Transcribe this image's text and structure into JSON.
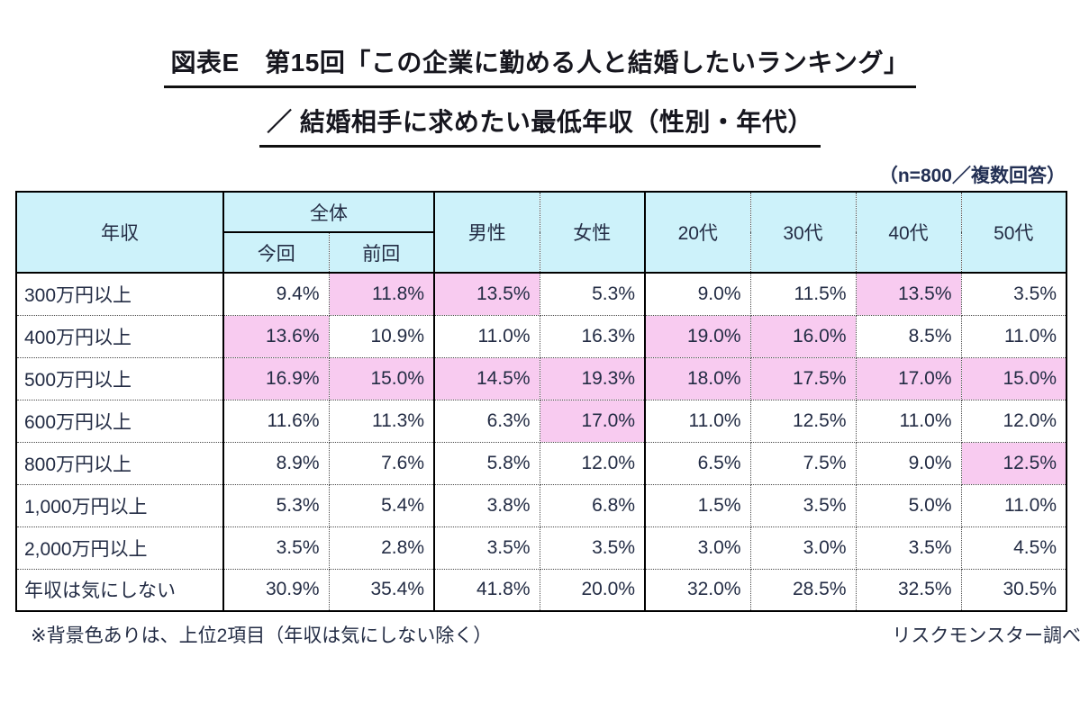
{
  "title": {
    "line1": "図表E　第15回「この企業に勤める人と結婚したいランキング」",
    "line2": "／ 結婚相手に求めたい最低年収（性別・年代）"
  },
  "top_note": "（n=800／複数回答）",
  "table": {
    "header": {
      "income": "年収",
      "overall": "全体",
      "this_time": "今回",
      "last_time": "前回",
      "male": "男性",
      "female": "女性",
      "age20s": "20代",
      "age30s": "30代",
      "age40s": "40代",
      "age50s": "50代"
    },
    "rows": [
      {
        "label": "300万円以上",
        "values": [
          "9.4%",
          "11.8%",
          "13.5%",
          "5.3%",
          "9.0%",
          "11.5%",
          "13.5%",
          "3.5%"
        ],
        "highlight": [
          false,
          true,
          true,
          false,
          false,
          false,
          true,
          false
        ]
      },
      {
        "label": "400万円以上",
        "values": [
          "13.6%",
          "10.9%",
          "11.0%",
          "16.3%",
          "19.0%",
          "16.0%",
          "8.5%",
          "11.0%"
        ],
        "highlight": [
          true,
          false,
          false,
          false,
          true,
          true,
          false,
          false
        ]
      },
      {
        "label": "500万円以上",
        "values": [
          "16.9%",
          "15.0%",
          "14.5%",
          "19.3%",
          "18.0%",
          "17.5%",
          "17.0%",
          "15.0%"
        ],
        "highlight": [
          true,
          true,
          true,
          true,
          true,
          true,
          true,
          true
        ]
      },
      {
        "label": "600万円以上",
        "values": [
          "11.6%",
          "11.3%",
          "6.3%",
          "17.0%",
          "11.0%",
          "12.5%",
          "11.0%",
          "12.0%"
        ],
        "highlight": [
          false,
          false,
          false,
          true,
          false,
          false,
          false,
          false
        ]
      },
      {
        "label": "800万円以上",
        "values": [
          "8.9%",
          "7.6%",
          "5.8%",
          "12.0%",
          "6.5%",
          "7.5%",
          "9.0%",
          "12.5%"
        ],
        "highlight": [
          false,
          false,
          false,
          false,
          false,
          false,
          false,
          true
        ]
      },
      {
        "label": "1,000万円以上",
        "values": [
          "5.3%",
          "5.4%",
          "3.8%",
          "6.8%",
          "1.5%",
          "3.5%",
          "5.0%",
          "11.0%"
        ],
        "highlight": [
          false,
          false,
          false,
          false,
          false,
          false,
          false,
          false
        ]
      },
      {
        "label": "2,000万円以上",
        "values": [
          "3.5%",
          "2.8%",
          "3.5%",
          "3.5%",
          "3.0%",
          "3.0%",
          "3.5%",
          "4.5%"
        ],
        "highlight": [
          false,
          false,
          false,
          false,
          false,
          false,
          false,
          false
        ]
      },
      {
        "label": "年収は気にしない",
        "values": [
          "30.9%",
          "35.4%",
          "41.8%",
          "20.0%",
          "32.0%",
          "28.5%",
          "32.5%",
          "30.5%"
        ],
        "highlight": [
          false,
          false,
          false,
          false,
          false,
          false,
          false,
          false
        ]
      }
    ]
  },
  "footer": {
    "left_note": "※背景色ありは、上位2項目（年収は気にしない除く）",
    "source": "リスクモンスター調べ"
  },
  "colors": {
    "header_bg": "#CDF2FA",
    "highlight_bg": "#F8CBF0",
    "text": "#232C44",
    "border": "#000000"
  },
  "chart_data": {
    "type": "table",
    "title": "図表E　第15回「この企業に勤める人と結婚したいランキング」／ 結婚相手に求めたい最低年収（性別・年代）",
    "sample_note": "（n=800／複数回答）",
    "columns": [
      "全体・今回",
      "全体・前回",
      "男性",
      "女性",
      "20代",
      "30代",
      "40代",
      "50代"
    ],
    "row_categories": [
      "300万円以上",
      "400万円以上",
      "500万円以上",
      "600万円以上",
      "800万円以上",
      "1,000万円以上",
      "2,000万円以上",
      "年収は気にしない"
    ],
    "values_percent": [
      [
        9.4,
        11.8,
        13.5,
        5.3,
        9.0,
        11.5,
        13.5,
        3.5
      ],
      [
        13.6,
        10.9,
        11.0,
        16.3,
        19.0,
        16.0,
        8.5,
        11.0
      ],
      [
        16.9,
        15.0,
        14.5,
        19.3,
        18.0,
        17.5,
        17.0,
        15.0
      ],
      [
        11.6,
        11.3,
        6.3,
        17.0,
        11.0,
        12.5,
        11.0,
        12.0
      ],
      [
        8.9,
        7.6,
        5.8,
        12.0,
        6.5,
        7.5,
        9.0,
        12.5
      ],
      [
        5.3,
        5.4,
        3.8,
        6.8,
        1.5,
        3.5,
        5.0,
        11.0
      ],
      [
        3.5,
        2.8,
        3.5,
        3.5,
        3.0,
        3.0,
        3.5,
        4.5
      ],
      [
        30.9,
        35.4,
        41.8,
        20.0,
        32.0,
        28.5,
        32.5,
        30.5
      ]
    ],
    "highlight_rule": "背景色ありは、上位2項目（年収は気にしない除く）",
    "source": "リスクモンスター調べ"
  }
}
